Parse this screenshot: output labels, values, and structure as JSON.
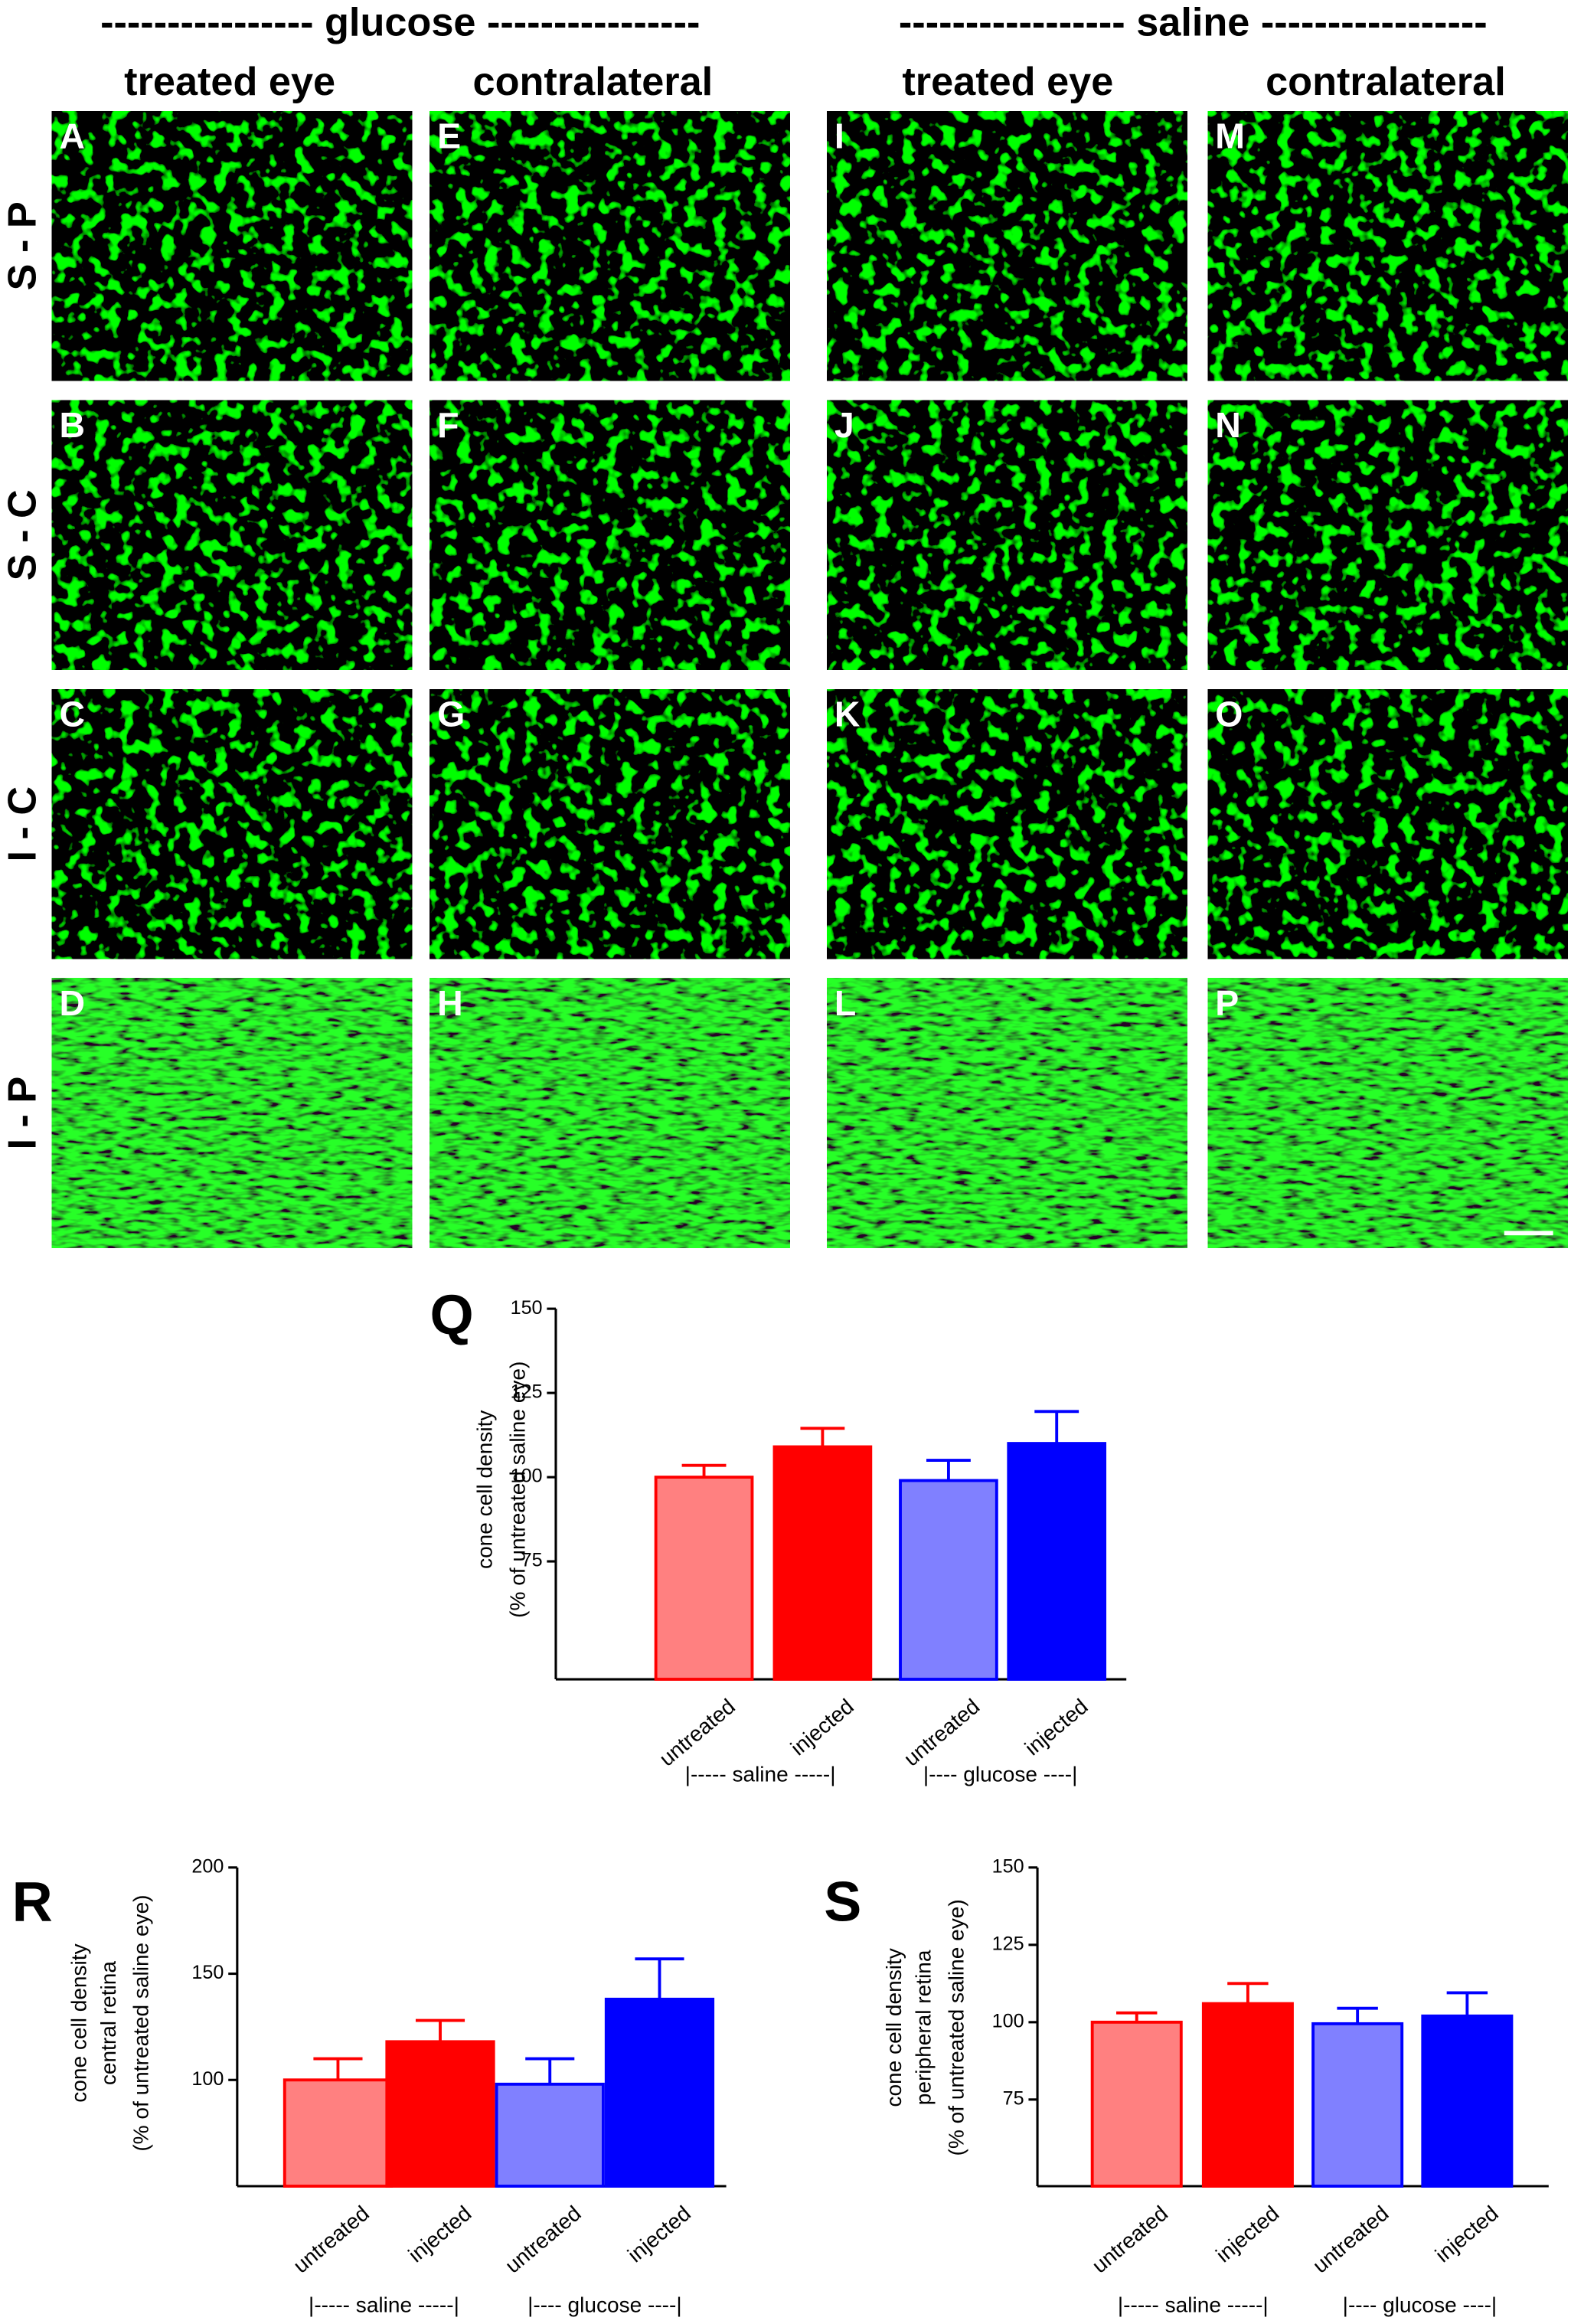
{
  "micrographs": {
    "groups": [
      "---------------- glucose ----------------",
      "----------------- saline -----------------"
    ],
    "columns": [
      "treated eye",
      "contralateral",
      "treated eye",
      "contralateral"
    ],
    "rows": [
      "S - P",
      "S - C",
      "I - C",
      "I - P"
    ],
    "panels": [
      [
        "A",
        "E",
        "I",
        "M"
      ],
      [
        "B",
        "F",
        "J",
        "N"
      ],
      [
        "C",
        "G",
        "K",
        "O"
      ],
      [
        "D",
        "H",
        "L",
        "P"
      ]
    ]
  },
  "chart_data": [
    {
      "type": "bar",
      "panel_label": "Q",
      "ylabel": [
        "cone cell density",
        "(% of untreated saline eye)"
      ],
      "categories": [
        "untreated",
        "injected",
        "untreated",
        "injected"
      ],
      "groups": [
        "|----- saline -----|",
        "|---- glucose ----|"
      ],
      "values": [
        100,
        109,
        99,
        110
      ],
      "errors": [
        3.5,
        5.5,
        6,
        9.5
      ],
      "colors": [
        "#ff8080",
        "#ff0000",
        "#8080ff",
        "#0000ff"
      ],
      "edge_colors": [
        "#ff0000",
        "#ff0000",
        "#0000ff",
        "#0000ff"
      ],
      "ylim": [
        40,
        150
      ],
      "yticks": [
        75,
        100,
        125,
        150
      ]
    },
    {
      "type": "bar",
      "panel_label": "R",
      "ylabel": [
        "cone cell density",
        "central retina",
        "(% of untreated saline eye)"
      ],
      "categories": [
        "untreated",
        "injected",
        "untreated",
        "injected"
      ],
      "groups": [
        "|----- saline -----|",
        "|---- glucose ----|"
      ],
      "values": [
        100,
        118,
        98,
        138
      ],
      "errors": [
        10,
        10,
        12,
        19
      ],
      "colors": [
        "#ff8080",
        "#ff0000",
        "#8080ff",
        "#0000ff"
      ],
      "edge_colors": [
        "#ff0000",
        "#ff0000",
        "#0000ff",
        "#0000ff"
      ],
      "ylim": [
        50,
        200
      ],
      "yticks": [
        100,
        150,
        200
      ]
    },
    {
      "type": "bar",
      "panel_label": "S",
      "ylabel": [
        "cone cell density",
        "peripheral retina",
        "(% of untreated saline eye)"
      ],
      "categories": [
        "untreated",
        "injected",
        "untreated",
        "injected"
      ],
      "groups": [
        "|----- saline -----|",
        "|---- glucose ----|"
      ],
      "values": [
        100,
        106,
        99.5,
        102
      ],
      "errors": [
        3,
        6.5,
        5,
        7.5
      ],
      "colors": [
        "#ff8080",
        "#ff0000",
        "#8080ff",
        "#0000ff"
      ],
      "edge_colors": [
        "#ff0000",
        "#ff0000",
        "#0000ff",
        "#0000ff"
      ],
      "ylim": [
        47,
        150
      ],
      "yticks": [
        75,
        100,
        125,
        150
      ]
    }
  ]
}
